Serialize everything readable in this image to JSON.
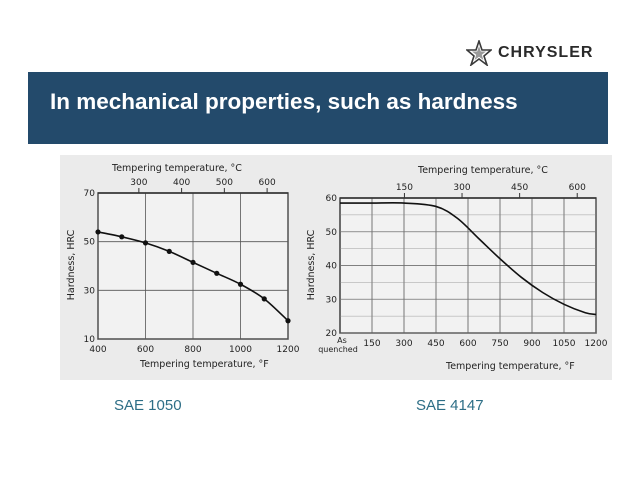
{
  "header": {
    "logo_text": "CHRYSLER",
    "logo_icon": "pentastar-icon",
    "title": "In mechanical properties, such as hardness"
  },
  "colors": {
    "banner": "#234a6b",
    "caption": "#2d6e86",
    "chart_bg": "#ebebeb"
  },
  "captions": [
    "SAE 1050",
    "SAE 4147"
  ],
  "chart_data": [
    {
      "type": "line",
      "title": "",
      "top_axis_label": "Tempering temperature, °C",
      "top_ticks": [
        300,
        400,
        500,
        600
      ],
      "xlabel": "Tempering temperature, °F",
      "ylabel": "Hardness, HRC",
      "x_ticks": [
        400,
        600,
        800,
        1000,
        1200
      ],
      "y_ticks": [
        10,
        30,
        50,
        70
      ],
      "xlim": [
        400,
        1200
      ],
      "ylim": [
        10,
        70
      ],
      "grid": true,
      "series": [
        {
          "x": [
            400,
            500,
            600,
            700,
            800,
            900,
            1000,
            1100,
            1200
          ],
          "y": [
            54,
            52,
            49.5,
            46,
            41.5,
            37,
            32.5,
            26.5,
            17.5
          ],
          "markers": true
        }
      ]
    },
    {
      "type": "line",
      "title": "",
      "top_axis_label": "Tempering temperature, °C",
      "top_ticks": [
        150,
        300,
        450,
        600
      ],
      "xlabel": "Tempering temperature, °F",
      "ylabel": "Hardness, HRC",
      "x_first_label": "As quenched",
      "x_ticks": [
        150,
        300,
        450,
        600,
        750,
        900,
        1050,
        1200
      ],
      "y_ticks": [
        20,
        30,
        40,
        50,
        60
      ],
      "xlim": [
        0,
        1200
      ],
      "ylim": [
        20,
        60
      ],
      "grid": true,
      "series": [
        {
          "x": [
            0,
            150,
            300,
            450,
            550,
            650,
            750,
            850,
            950,
            1050,
            1150,
            1200
          ],
          "y": [
            58.5,
            58.5,
            58.5,
            57.5,
            54,
            48,
            42,
            36.5,
            32,
            28.5,
            26,
            25.5
          ],
          "markers": false
        }
      ]
    }
  ]
}
